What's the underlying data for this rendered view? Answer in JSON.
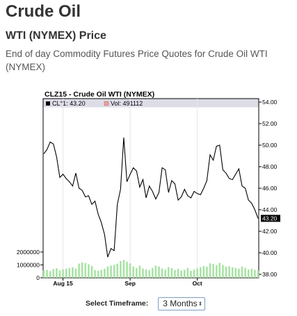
{
  "page": {
    "title": "Crude Oil",
    "section_title": "WTI (NYMEX) Price",
    "description": "End of day Commodity Futures Price Quotes for Crude Oil WTI (NYMEX)"
  },
  "controls": {
    "timeframe_label": "Select Timeframe:",
    "timeframe_value": "3 Months",
    "timeframe_arrow_icon": "updown-arrow-icon"
  },
  "chart_data": {
    "type": "line",
    "title": "CLZ15 - Crude Oil WTI (NYMEX)",
    "legend": [
      {
        "text": "CL°1: 43.20",
        "color": "#000000"
      },
      {
        "text": "Vol: 491112",
        "color": "#e8a0a0"
      }
    ],
    "current_price_label": "43.20",
    "x_ticks": [
      "Aug 15",
      "Sep",
      "Oct"
    ],
    "y_ticks": [
      "54.00",
      "52.00",
      "50.00",
      "48.00",
      "46.00",
      "44.00",
      "42.00",
      "40.00",
      "38.00"
    ],
    "ylim": [
      38,
      54
    ],
    "volume_ticks": [
      "2000000",
      "1000000",
      "0"
    ],
    "volume_lim": [
      0,
      2800000
    ],
    "prices": [
      49.2,
      49.6,
      50.3,
      50.1,
      48.9,
      47.0,
      47.3,
      46.9,
      46.6,
      46.2,
      47.4,
      46.0,
      45.8,
      45.2,
      45.3,
      44.5,
      44.8,
      43.6,
      42.8,
      41.7,
      39.6,
      40.4,
      40.2,
      44.5,
      45.9,
      50.7,
      46.6,
      47.3,
      47.9,
      47.6,
      46.1,
      46.8,
      45.1,
      46.2,
      45.7,
      45.0,
      45.6,
      47.9,
      47.7,
      45.6,
      46.7,
      46.4,
      44.9,
      45.2,
      45.9,
      45.3,
      45.1,
      45.7,
      45.5,
      45.4,
      46.0,
      46.7,
      49.1,
      48.6,
      49.9,
      50.0,
      47.7,
      47.4,
      46.9,
      46.8,
      47.3,
      47.8,
      46.2,
      46.0,
      44.9,
      44.6,
      44.0,
      43.2
    ],
    "volumes": [
      560000,
      610000,
      520000,
      680000,
      740000,
      580000,
      650000,
      700000,
      760000,
      820000,
      720000,
      1100000,
      1200000,
      1150000,
      1050000,
      920000,
      600000,
      550000,
      620000,
      700000,
      880000,
      950000,
      1000000,
      1100000,
      1300000,
      1380000,
      1250000,
      1120000,
      880000,
      760000,
      940000,
      720000,
      650000,
      600000,
      760000,
      940000,
      880000,
      720000,
      640000,
      820000,
      760000,
      600000,
      700000,
      560000,
      620000,
      760000,
      540000,
      640000,
      720000,
      820000,
      900000,
      860000,
      1120000,
      1080000,
      980000,
      1150000,
      1000000,
      860000,
      900000,
      820000,
      760000,
      700000,
      880000,
      780000,
      640000,
      700000,
      620000,
      560000
    ]
  },
  "colors": {
    "line": "#000000",
    "volume_bar": "#a6e3a1",
    "legend_band": "#dddde8",
    "label_bg": "#000000",
    "select_border": "#7a9fc2"
  }
}
